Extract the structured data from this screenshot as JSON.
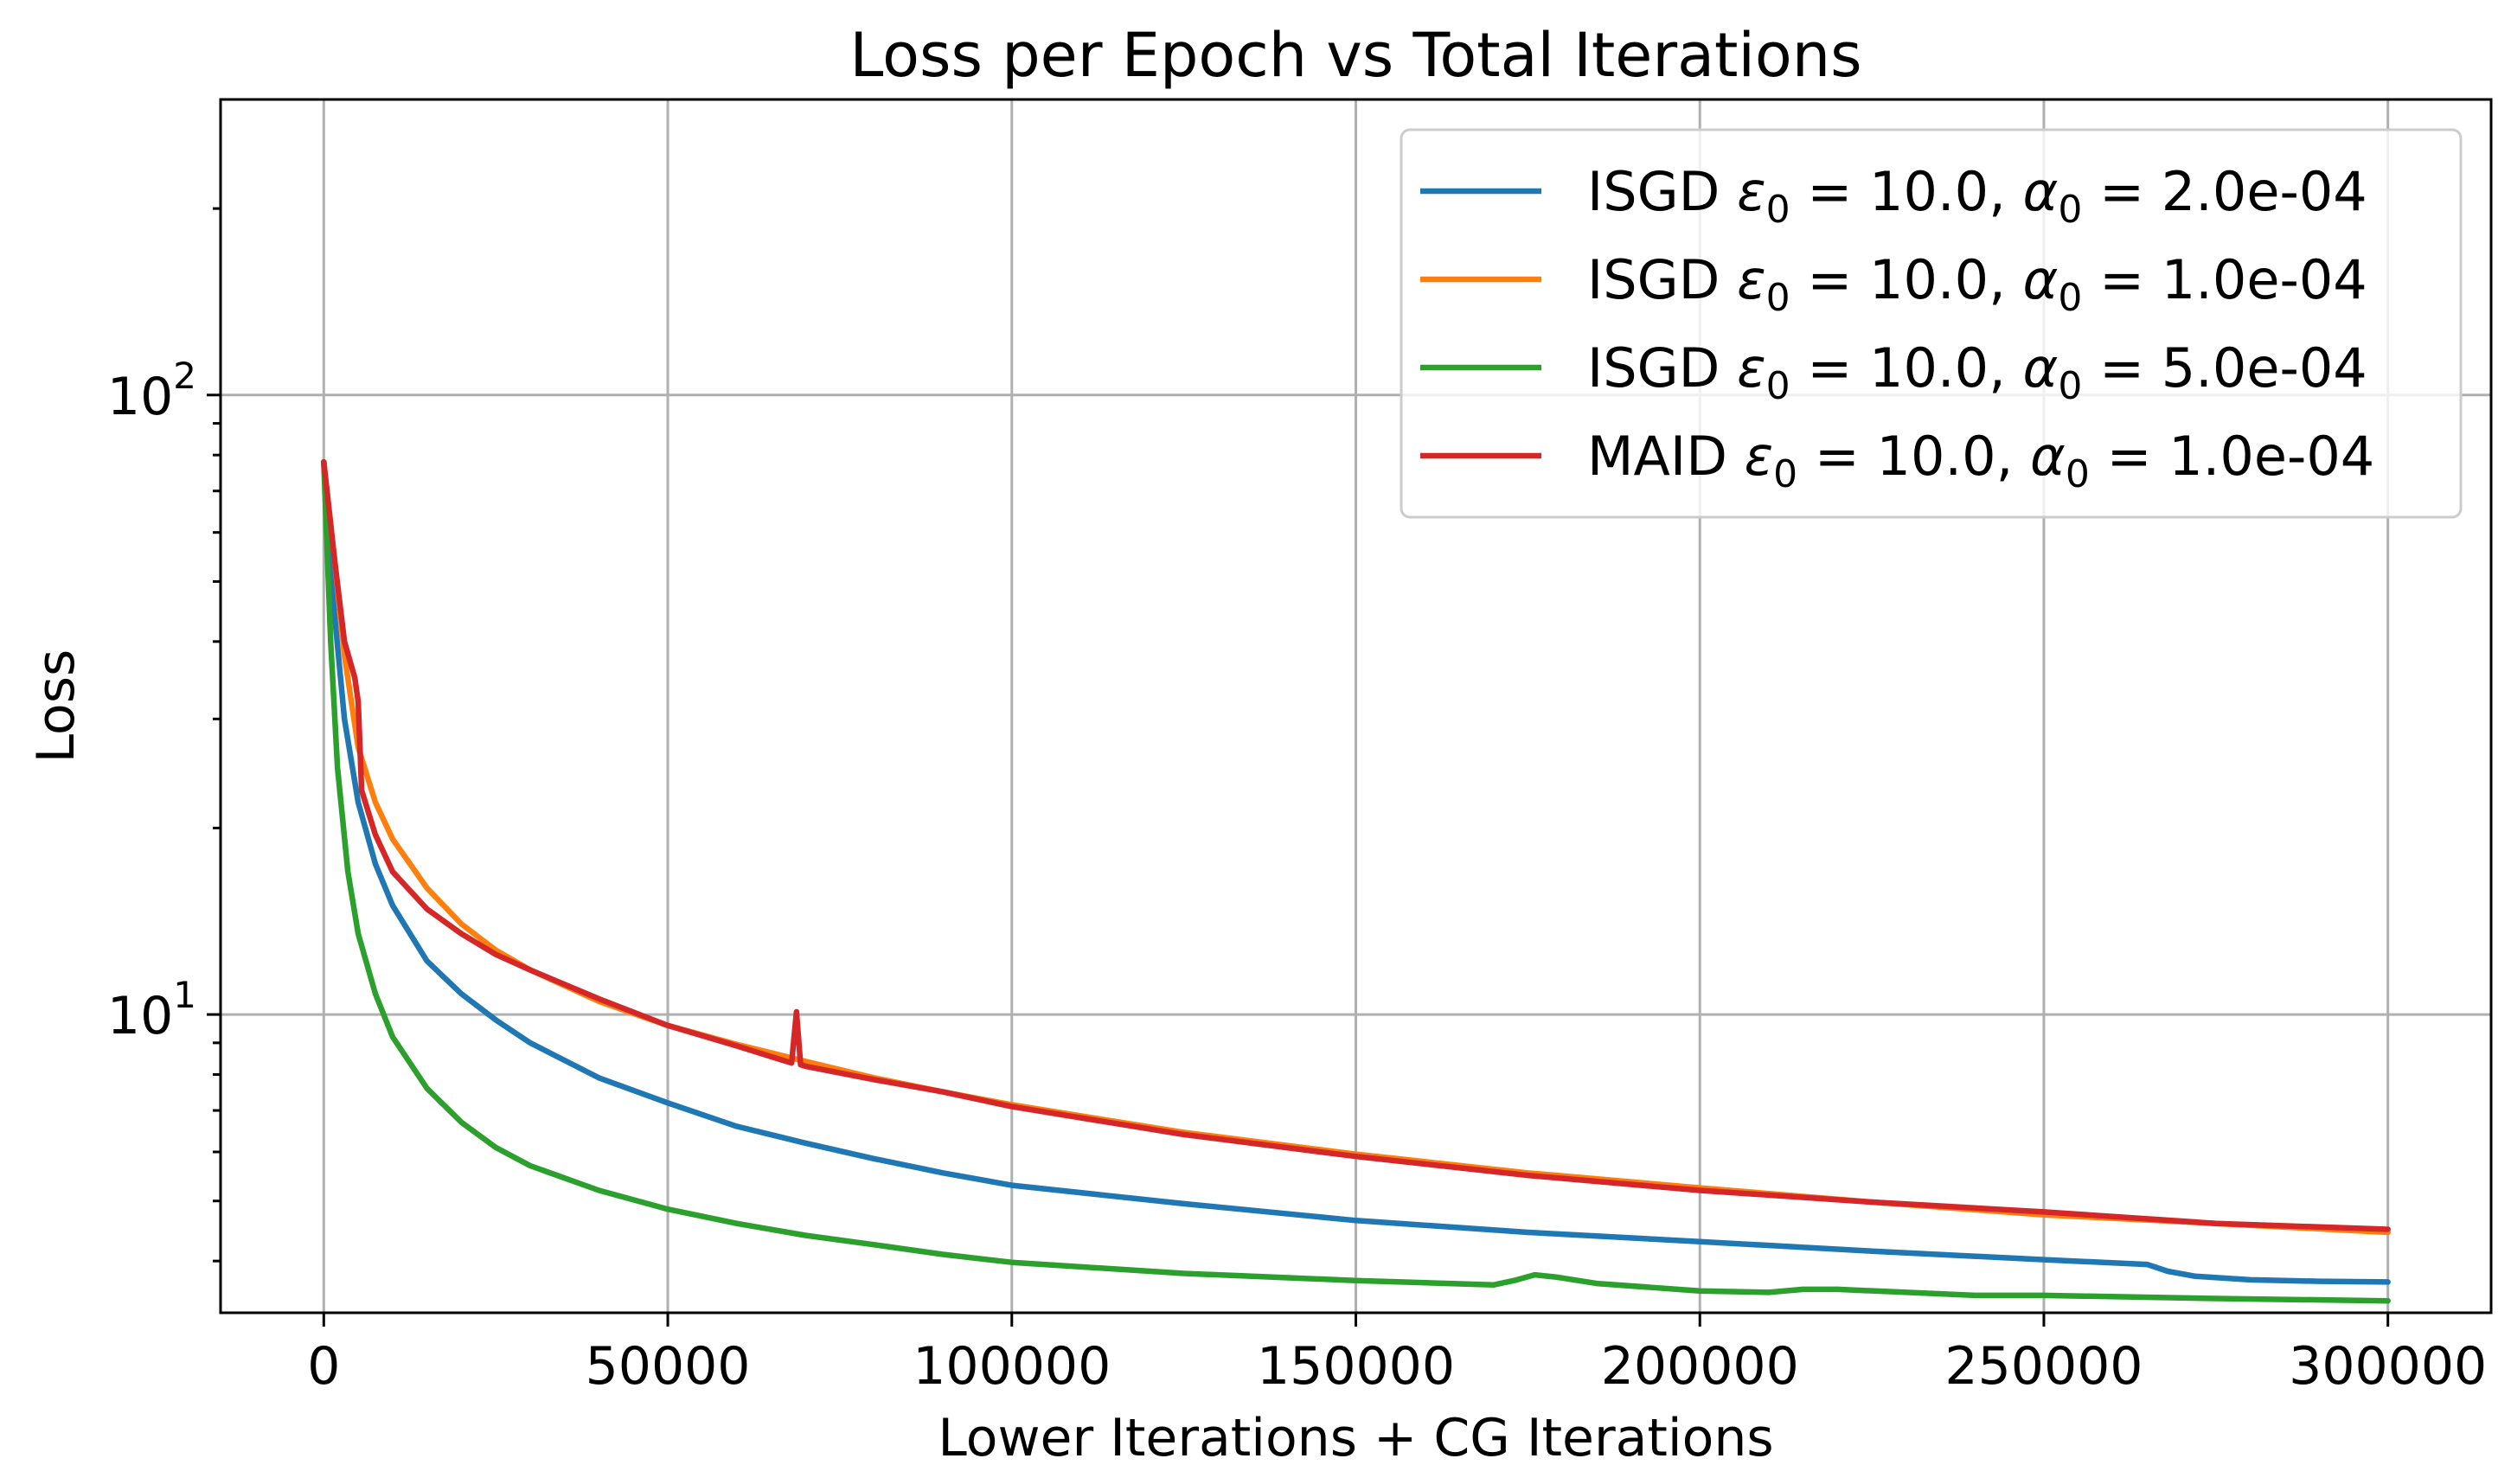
{
  "chart_data": {
    "type": "line",
    "title": "Loss per Epoch vs Total Iterations",
    "xlabel": "Lower Iterations + CG Iterations",
    "ylabel": "Loss",
    "x_scale": "linear",
    "y_scale": "log",
    "xlim": [
      -15000,
      315000
    ],
    "ylim": [
      3.3,
      300
    ],
    "grid": true,
    "legend_position": "top-right",
    "x_ticks": [
      {
        "value": 0,
        "label": "0"
      },
      {
        "value": 50000,
        "label": "50000"
      },
      {
        "value": 100000,
        "label": "100000"
      },
      {
        "value": 150000,
        "label": "150000"
      },
      {
        "value": 200000,
        "label": "200000"
      },
      {
        "value": 250000,
        "label": "250000"
      },
      {
        "value": 300000,
        "label": "300000"
      }
    ],
    "y_ticks": [
      {
        "value": 10,
        "base": "10",
        "exp": "1"
      },
      {
        "value": 100,
        "base": "10",
        "exp": "2"
      }
    ],
    "series": [
      {
        "name": "ISGD ε0 = 10.0, α0 = 2.0e-04",
        "legend": {
          "method": "ISGD",
          "eps_sym": "ε",
          "eps_val": " = 10.0, ",
          "alpha_sym": "α",
          "alpha_val": " = 2.0e-04",
          "sub": "0"
        },
        "color": "#1f77b4",
        "x": [
          0,
          1500,
          3000,
          5000,
          7500,
          10000,
          15000,
          20000,
          25000,
          30000,
          40000,
          50000,
          60000,
          70000,
          80000,
          90000,
          100000,
          125000,
          150000,
          175000,
          200000,
          225000,
          250000,
          265000,
          268000,
          272000,
          280000,
          290000,
          300000
        ],
        "y": [
          78,
          45,
          30,
          22,
          17.5,
          15,
          12.2,
          10.8,
          9.8,
          9.0,
          7.9,
          7.2,
          6.6,
          6.2,
          5.85,
          5.55,
          5.3,
          4.95,
          4.65,
          4.45,
          4.3,
          4.15,
          4.02,
          3.95,
          3.85,
          3.78,
          3.73,
          3.71,
          3.7
        ]
      },
      {
        "name": "ISGD ε0 = 10.0, α0 = 1.0e-04",
        "legend": {
          "method": "ISGD",
          "eps_sym": "ε",
          "eps_val": " = 10.0, ",
          "alpha_sym": "α",
          "alpha_val": " = 1.0e-04",
          "sub": "0"
        },
        "color": "#ff7f0e",
        "x": [
          0,
          1500,
          3000,
          5000,
          7500,
          10000,
          15000,
          20000,
          25000,
          30000,
          40000,
          50000,
          60000,
          70000,
          80000,
          90000,
          100000,
          125000,
          150000,
          175000,
          200000,
          225000,
          250000,
          275000,
          300000
        ],
        "y": [
          78,
          55,
          38,
          27,
          22,
          19.2,
          16,
          14,
          12.7,
          11.8,
          10.5,
          9.6,
          8.95,
          8.4,
          7.9,
          7.5,
          7.15,
          6.45,
          5.95,
          5.55,
          5.25,
          4.98,
          4.75,
          4.6,
          4.45
        ]
      },
      {
        "name": "ISGD ε0 = 10.0, α0 = 5.0e-04",
        "legend": {
          "method": "ISGD",
          "eps_sym": "ε",
          "eps_val": " = 10.0, ",
          "alpha_sym": "α",
          "alpha_val": " = 5.0e-04",
          "sub": "0"
        },
        "color": "#2ca02c",
        "x": [
          0,
          1000,
          2000,
          3500,
          5000,
          7500,
          10000,
          15000,
          20000,
          25000,
          30000,
          40000,
          50000,
          60000,
          70000,
          80000,
          90000,
          100000,
          125000,
          150000,
          170000,
          173000,
          176000,
          179000,
          185000,
          200000,
          210000,
          215000,
          220000,
          240000,
          250000,
          275000,
          300000
        ],
        "y": [
          78,
          40,
          25,
          17,
          13.5,
          10.8,
          9.2,
          7.6,
          6.7,
          6.1,
          5.7,
          5.2,
          4.85,
          4.6,
          4.4,
          4.25,
          4.1,
          3.98,
          3.82,
          3.72,
          3.66,
          3.72,
          3.8,
          3.77,
          3.68,
          3.58,
          3.56,
          3.6,
          3.6,
          3.52,
          3.52,
          3.48,
          3.45
        ]
      },
      {
        "name": "MAID ε0 = 10.0, α0 = 1.0e-04",
        "legend": {
          "method": "MAID",
          "eps_sym": "ε",
          "eps_val": " = 10.0, ",
          "alpha_sym": "α",
          "alpha_val": " = 1.0e-04",
          "sub": "0"
        },
        "color": "#d62728",
        "x": [
          0,
          1500,
          3000,
          4500,
          5000,
          5500,
          7500,
          10000,
          15000,
          20000,
          25000,
          30000,
          40000,
          50000,
          60000,
          68000,
          68700,
          69300,
          70000,
          80000,
          90000,
          100000,
          125000,
          150000,
          175000,
          200000,
          225000,
          250000,
          275000,
          300000
        ],
        "y": [
          78,
          55,
          40,
          35,
          32,
          23,
          19.5,
          17,
          14.8,
          13.5,
          12.5,
          11.8,
          10.6,
          9.6,
          8.9,
          8.35,
          10.1,
          8.3,
          8.25,
          7.85,
          7.5,
          7.1,
          6.4,
          5.9,
          5.5,
          5.2,
          4.98,
          4.8,
          4.6,
          4.5
        ]
      }
    ]
  }
}
